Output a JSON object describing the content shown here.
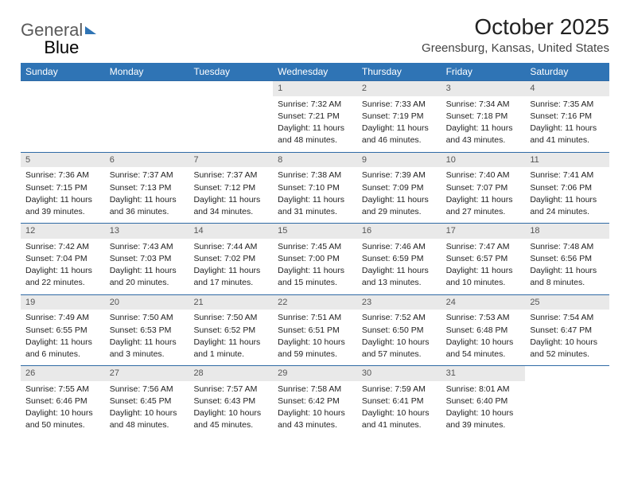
{
  "logo": {
    "part1": "General",
    "part2": "Blue"
  },
  "header": {
    "title": "October 2025",
    "location": "Greensburg, Kansas, United States"
  },
  "colors": {
    "header_bg": "#2f74b5",
    "header_text": "#ffffff",
    "daynum_bg": "#e9e9e9",
    "week_border": "#2f6aa5"
  },
  "day_names": [
    "Sunday",
    "Monday",
    "Tuesday",
    "Wednesday",
    "Thursday",
    "Friday",
    "Saturday"
  ],
  "weeks": [
    [
      null,
      null,
      null,
      {
        "d": "1",
        "sr": "Sunrise: 7:32 AM",
        "ss": "Sunset: 7:21 PM",
        "dl1": "Daylight: 11 hours",
        "dl2": "and 48 minutes."
      },
      {
        "d": "2",
        "sr": "Sunrise: 7:33 AM",
        "ss": "Sunset: 7:19 PM",
        "dl1": "Daylight: 11 hours",
        "dl2": "and 46 minutes."
      },
      {
        "d": "3",
        "sr": "Sunrise: 7:34 AM",
        "ss": "Sunset: 7:18 PM",
        "dl1": "Daylight: 11 hours",
        "dl2": "and 43 minutes."
      },
      {
        "d": "4",
        "sr": "Sunrise: 7:35 AM",
        "ss": "Sunset: 7:16 PM",
        "dl1": "Daylight: 11 hours",
        "dl2": "and 41 minutes."
      }
    ],
    [
      {
        "d": "5",
        "sr": "Sunrise: 7:36 AM",
        "ss": "Sunset: 7:15 PM",
        "dl1": "Daylight: 11 hours",
        "dl2": "and 39 minutes."
      },
      {
        "d": "6",
        "sr": "Sunrise: 7:37 AM",
        "ss": "Sunset: 7:13 PM",
        "dl1": "Daylight: 11 hours",
        "dl2": "and 36 minutes."
      },
      {
        "d": "7",
        "sr": "Sunrise: 7:37 AM",
        "ss": "Sunset: 7:12 PM",
        "dl1": "Daylight: 11 hours",
        "dl2": "and 34 minutes."
      },
      {
        "d": "8",
        "sr": "Sunrise: 7:38 AM",
        "ss": "Sunset: 7:10 PM",
        "dl1": "Daylight: 11 hours",
        "dl2": "and 31 minutes."
      },
      {
        "d": "9",
        "sr": "Sunrise: 7:39 AM",
        "ss": "Sunset: 7:09 PM",
        "dl1": "Daylight: 11 hours",
        "dl2": "and 29 minutes."
      },
      {
        "d": "10",
        "sr": "Sunrise: 7:40 AM",
        "ss": "Sunset: 7:07 PM",
        "dl1": "Daylight: 11 hours",
        "dl2": "and 27 minutes."
      },
      {
        "d": "11",
        "sr": "Sunrise: 7:41 AM",
        "ss": "Sunset: 7:06 PM",
        "dl1": "Daylight: 11 hours",
        "dl2": "and 24 minutes."
      }
    ],
    [
      {
        "d": "12",
        "sr": "Sunrise: 7:42 AM",
        "ss": "Sunset: 7:04 PM",
        "dl1": "Daylight: 11 hours",
        "dl2": "and 22 minutes."
      },
      {
        "d": "13",
        "sr": "Sunrise: 7:43 AM",
        "ss": "Sunset: 7:03 PM",
        "dl1": "Daylight: 11 hours",
        "dl2": "and 20 minutes."
      },
      {
        "d": "14",
        "sr": "Sunrise: 7:44 AM",
        "ss": "Sunset: 7:02 PM",
        "dl1": "Daylight: 11 hours",
        "dl2": "and 17 minutes."
      },
      {
        "d": "15",
        "sr": "Sunrise: 7:45 AM",
        "ss": "Sunset: 7:00 PM",
        "dl1": "Daylight: 11 hours",
        "dl2": "and 15 minutes."
      },
      {
        "d": "16",
        "sr": "Sunrise: 7:46 AM",
        "ss": "Sunset: 6:59 PM",
        "dl1": "Daylight: 11 hours",
        "dl2": "and 13 minutes."
      },
      {
        "d": "17",
        "sr": "Sunrise: 7:47 AM",
        "ss": "Sunset: 6:57 PM",
        "dl1": "Daylight: 11 hours",
        "dl2": "and 10 minutes."
      },
      {
        "d": "18",
        "sr": "Sunrise: 7:48 AM",
        "ss": "Sunset: 6:56 PM",
        "dl1": "Daylight: 11 hours",
        "dl2": "and 8 minutes."
      }
    ],
    [
      {
        "d": "19",
        "sr": "Sunrise: 7:49 AM",
        "ss": "Sunset: 6:55 PM",
        "dl1": "Daylight: 11 hours",
        "dl2": "and 6 minutes."
      },
      {
        "d": "20",
        "sr": "Sunrise: 7:50 AM",
        "ss": "Sunset: 6:53 PM",
        "dl1": "Daylight: 11 hours",
        "dl2": "and 3 minutes."
      },
      {
        "d": "21",
        "sr": "Sunrise: 7:50 AM",
        "ss": "Sunset: 6:52 PM",
        "dl1": "Daylight: 11 hours",
        "dl2": "and 1 minute."
      },
      {
        "d": "22",
        "sr": "Sunrise: 7:51 AM",
        "ss": "Sunset: 6:51 PM",
        "dl1": "Daylight: 10 hours",
        "dl2": "and 59 minutes."
      },
      {
        "d": "23",
        "sr": "Sunrise: 7:52 AM",
        "ss": "Sunset: 6:50 PM",
        "dl1": "Daylight: 10 hours",
        "dl2": "and 57 minutes."
      },
      {
        "d": "24",
        "sr": "Sunrise: 7:53 AM",
        "ss": "Sunset: 6:48 PM",
        "dl1": "Daylight: 10 hours",
        "dl2": "and 54 minutes."
      },
      {
        "d": "25",
        "sr": "Sunrise: 7:54 AM",
        "ss": "Sunset: 6:47 PM",
        "dl1": "Daylight: 10 hours",
        "dl2": "and 52 minutes."
      }
    ],
    [
      {
        "d": "26",
        "sr": "Sunrise: 7:55 AM",
        "ss": "Sunset: 6:46 PM",
        "dl1": "Daylight: 10 hours",
        "dl2": "and 50 minutes."
      },
      {
        "d": "27",
        "sr": "Sunrise: 7:56 AM",
        "ss": "Sunset: 6:45 PM",
        "dl1": "Daylight: 10 hours",
        "dl2": "and 48 minutes."
      },
      {
        "d": "28",
        "sr": "Sunrise: 7:57 AM",
        "ss": "Sunset: 6:43 PM",
        "dl1": "Daylight: 10 hours",
        "dl2": "and 45 minutes."
      },
      {
        "d": "29",
        "sr": "Sunrise: 7:58 AM",
        "ss": "Sunset: 6:42 PM",
        "dl1": "Daylight: 10 hours",
        "dl2": "and 43 minutes."
      },
      {
        "d": "30",
        "sr": "Sunrise: 7:59 AM",
        "ss": "Sunset: 6:41 PM",
        "dl1": "Daylight: 10 hours",
        "dl2": "and 41 minutes."
      },
      {
        "d": "31",
        "sr": "Sunrise: 8:01 AM",
        "ss": "Sunset: 6:40 PM",
        "dl1": "Daylight: 10 hours",
        "dl2": "and 39 minutes."
      },
      null
    ]
  ]
}
